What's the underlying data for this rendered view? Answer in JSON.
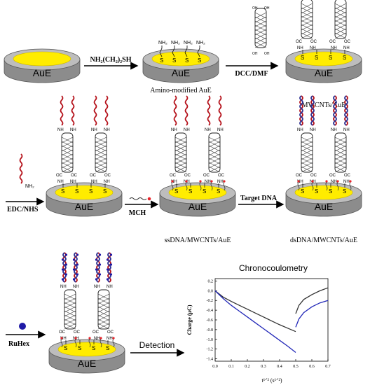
{
  "electrode_label": "AuE",
  "s_label": "S",
  "reagents": {
    "step1": "NH₂(CH₂)₂SH",
    "step2": "DCC/DMF",
    "step3": "EDC/NHS",
    "step4": "MCH",
    "step5": "Target DNA",
    "step6": "RuHex",
    "detection": "Detection"
  },
  "captions": {
    "amino": "Amino-modified AuE",
    "mwcnts": "MWCNTs/AuE",
    "ssdna": "ssDNA/MWCNTs/AuE",
    "dsdna": "dsDNA/MWCNTs/AuE"
  },
  "tube_labels": {
    "oh": "OH",
    "ho": "HO",
    "o": "O",
    "c": "C",
    "nh": "NH",
    "nh2": "NH₂"
  },
  "colors": {
    "gold": "#ffec00",
    "electrode_side": "#8c8c8c",
    "electrode_top": "#bdbdbd",
    "ssdna": "#b5121b",
    "dsdna_blue": "#2e3192",
    "ruhex": "#1f1aa6",
    "curve_black": "#333333",
    "curve_blue": "#2228b8"
  },
  "chart_data": {
    "type": "line",
    "title": "Chronocoulometry",
    "xlabel": "t¹ᐟ² (s¹ᐟ²)",
    "ylabel": "Charge (μC)",
    "xlim": [
      0.0,
      0.7
    ],
    "ylim": [
      -1.45,
      0.25
    ],
    "xticks": [
      "0.0",
      "0.1",
      "0.2",
      "0.3",
      "0.4",
      "0.5",
      "0.6",
      "0.7"
    ],
    "yticks": [
      "0.2",
      "0.0",
      "-0.2",
      "-0.4",
      "-0.6",
      "-0.8",
      "-1.0",
      "-1.2",
      "-1.4"
    ],
    "series": [
      {
        "color": "#333333",
        "segments": [
          [
            [
              0.0,
              0.0
            ],
            [
              0.05,
              -0.13
            ],
            [
              0.1,
              -0.22
            ],
            [
              0.15,
              -0.3
            ],
            [
              0.2,
              -0.38
            ],
            [
              0.25,
              -0.46
            ],
            [
              0.3,
              -0.54
            ],
            [
              0.35,
              -0.62
            ],
            [
              0.4,
              -0.7
            ],
            [
              0.45,
              -0.77
            ],
            [
              0.5,
              -0.84
            ]
          ],
          [
            [
              0.5,
              -0.47
            ],
            [
              0.52,
              -0.3
            ],
            [
              0.55,
              -0.18
            ],
            [
              0.6,
              -0.08
            ],
            [
              0.65,
              0.0
            ],
            [
              0.7,
              0.06
            ]
          ]
        ]
      },
      {
        "color": "#2228b8",
        "segments": [
          [
            [
              0.0,
              0.0
            ],
            [
              0.05,
              -0.16
            ],
            [
              0.1,
              -0.3
            ],
            [
              0.15,
              -0.42
            ],
            [
              0.2,
              -0.54
            ],
            [
              0.25,
              -0.66
            ],
            [
              0.3,
              -0.78
            ],
            [
              0.35,
              -0.9
            ],
            [
              0.4,
              -1.02
            ],
            [
              0.45,
              -1.14
            ],
            [
              0.5,
              -1.27
            ]
          ],
          [
            [
              0.5,
              -0.75
            ],
            [
              0.52,
              -0.58
            ],
            [
              0.55,
              -0.45
            ],
            [
              0.6,
              -0.33
            ],
            [
              0.65,
              -0.25
            ],
            [
              0.7,
              -0.2
            ]
          ]
        ]
      }
    ]
  }
}
